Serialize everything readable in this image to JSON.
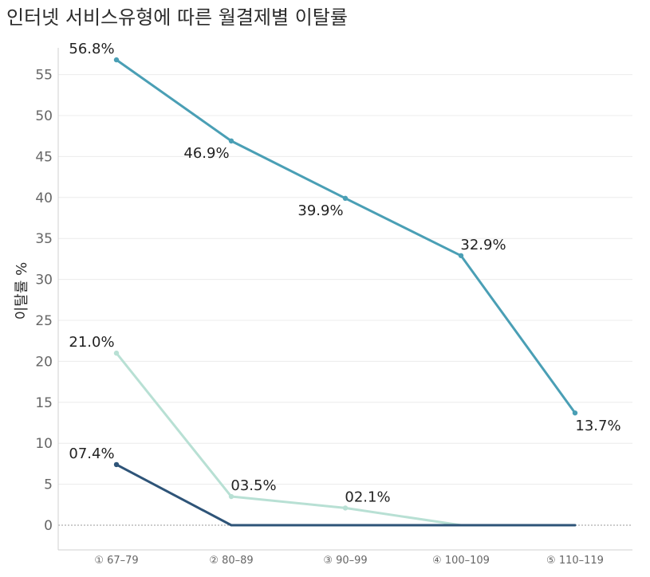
{
  "chart_data": {
    "type": "line",
    "title": "인터넷 서비스유형에 따른 월결제별 이탈률",
    "ylabel": "이탈률 %",
    "xlabel": "",
    "categories": [
      "① 67–79",
      "② 80–89",
      "③ 90–99",
      "④ 100–109",
      "⑤ 110–119"
    ],
    "ylim": [
      -3,
      60
    ],
    "yticks": [
      0,
      5,
      10,
      15,
      20,
      25,
      30,
      35,
      40,
      45,
      50,
      55
    ],
    "grid": true,
    "legend": "none",
    "series": [
      {
        "color": "#4a9fb5",
        "values": [
          56.8,
          46.9,
          39.9,
          32.9,
          13.7
        ],
        "labels": [
          "56.8%",
          "46.9%",
          "39.9%",
          "32.9%",
          "13.7%"
        ]
      },
      {
        "color": "#b8e0d4",
        "values": [
          21.0,
          3.5,
          2.1,
          0,
          0
        ],
        "labels": [
          "21.0%",
          "03.5%",
          "02.1%",
          "",
          ""
        ]
      },
      {
        "color": "#2e5478",
        "values": [
          7.4,
          0,
          0,
          0,
          0
        ],
        "labels": [
          "07.4%",
          "",
          "",
          "",
          ""
        ]
      }
    ]
  }
}
